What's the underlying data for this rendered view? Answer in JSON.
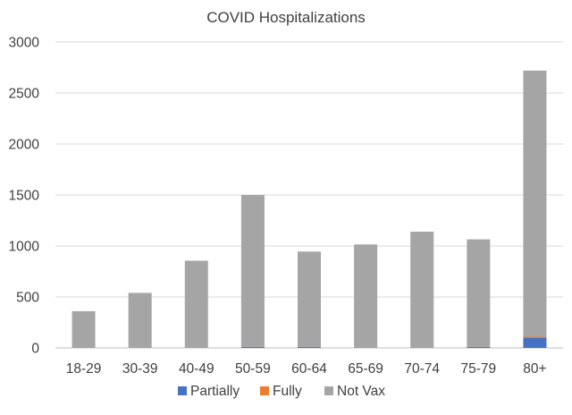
{
  "chart_data": {
    "type": "bar",
    "stacked": true,
    "title": "COVID Hospitalizations",
    "xlabel": "",
    "ylabel": "",
    "categories": [
      "18-29",
      "30-39",
      "40-49",
      "50-59",
      "60-64",
      "65-69",
      "70-74",
      "75-79",
      "80+"
    ],
    "series": [
      {
        "name": "Partially",
        "color": "#4472C4",
        "values": [
          0,
          0,
          0,
          10,
          10,
          0,
          0,
          10,
          100
        ]
      },
      {
        "name": "Fully",
        "color": "#ED7D31",
        "values": [
          0,
          0,
          0,
          0,
          0,
          0,
          0,
          0,
          10
        ]
      },
      {
        "name": "Not Vax",
        "color": "#A5A5A5",
        "values": [
          360,
          540,
          855,
          1490,
          935,
          1015,
          1140,
          1055,
          2610
        ]
      }
    ],
    "ylim": [
      0,
      3000
    ],
    "yticks": [
      "0",
      "500",
      "1000",
      "1500",
      "2000",
      "2500",
      "3000"
    ],
    "grid": true,
    "legend_position": "bottom"
  }
}
